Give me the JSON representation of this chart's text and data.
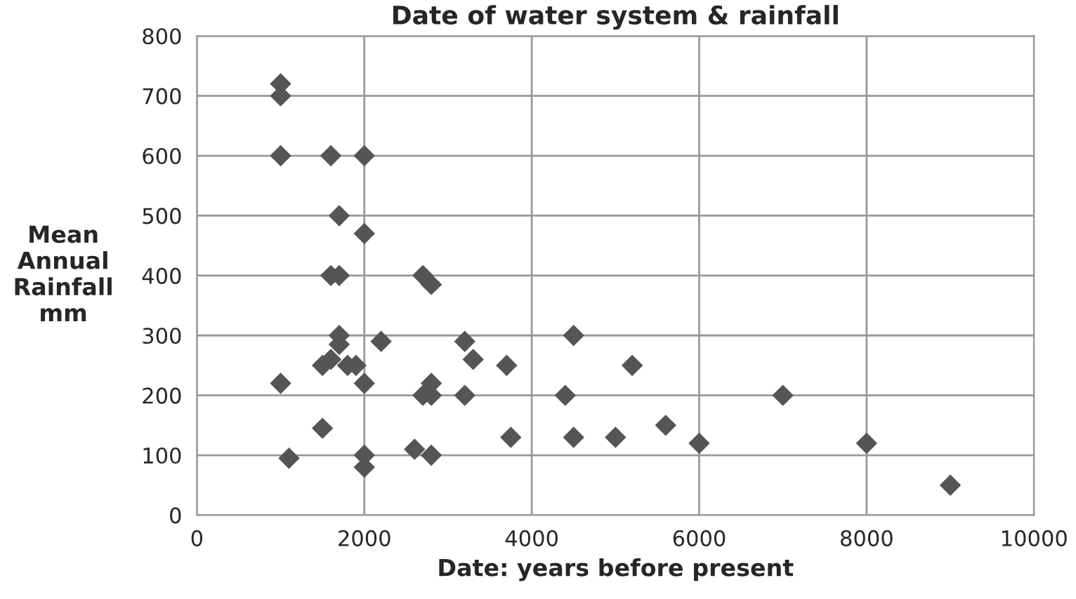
{
  "chart_data": {
    "type": "scatter",
    "title": "Date of water system & rainfall",
    "xlabel": "Date: years before present",
    "ylabel": "Mean\nAnnual\nRainfall\nmm",
    "x": [
      1000,
      1000,
      1000,
      1600,
      2000,
      1700,
      2000,
      1600,
      1700,
      2700,
      2800,
      1700,
      1700,
      2200,
      3200,
      4500,
      1600,
      1500,
      1800,
      1900,
      3300,
      3700,
      5200,
      1000,
      2000,
      2800,
      2700,
      2800,
      3200,
      4400,
      7000,
      1500,
      5600,
      2600,
      1100,
      2000,
      2000,
      2800,
      3750,
      4500,
      5000,
      6000,
      8000,
      9000
    ],
    "values": [
      720,
      700,
      600,
      600,
      600,
      500,
      470,
      400,
      400,
      400,
      385,
      300,
      285,
      290,
      290,
      300,
      260,
      250,
      250,
      250,
      260,
      250,
      250,
      220,
      220,
      220,
      200,
      200,
      200,
      200,
      200,
      145,
      150,
      110,
      95,
      100,
      80,
      100,
      130,
      130,
      130,
      120,
      120,
      50
    ],
    "color": "#555555",
    "marker": "diamond",
    "grid": true,
    "xlim": [
      0,
      10000
    ],
    "xticks": [
      0,
      2000,
      4000,
      6000,
      8000,
      10000
    ],
    "ylim": [
      0,
      800
    ],
    "yticks": [
      0,
      100,
      200,
      300,
      400,
      500,
      600,
      700,
      800
    ]
  }
}
